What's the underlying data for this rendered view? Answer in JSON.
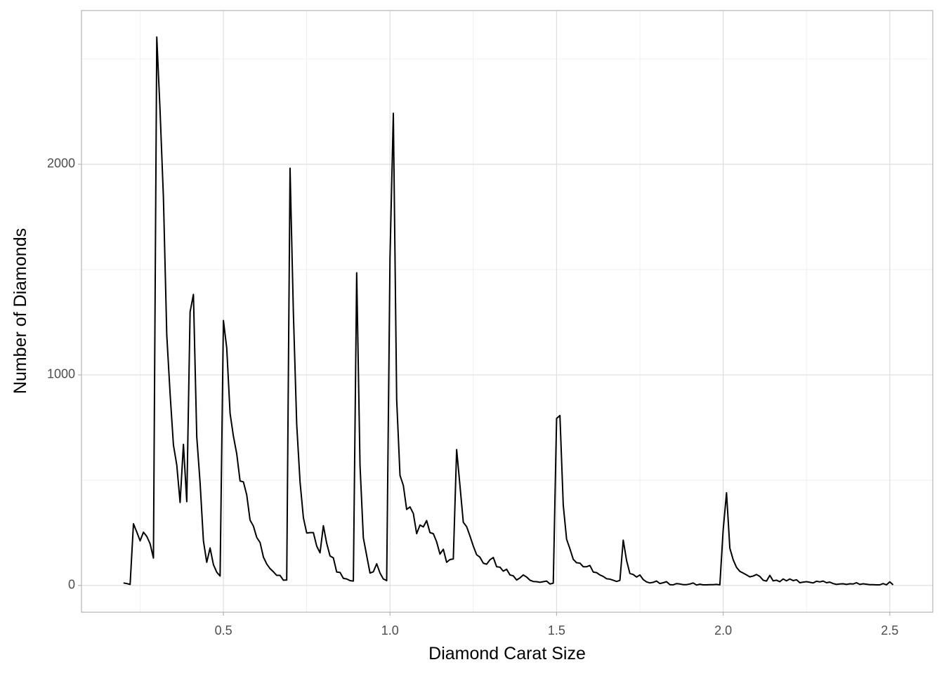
{
  "chart_data": {
    "type": "line",
    "x_label": "Diamond Carat Size",
    "y_label": "Number of Diamonds",
    "x": [
      0.2,
      0.21,
      0.22,
      0.23,
      0.24,
      0.25,
      0.26,
      0.27,
      0.28,
      0.29,
      0.3,
      0.31,
      0.32,
      0.33,
      0.34,
      0.35,
      0.36,
      0.37,
      0.38,
      0.39,
      0.4,
      0.41,
      0.42,
      0.43,
      0.44,
      0.45,
      0.46,
      0.47,
      0.48,
      0.49,
      0.5,
      0.51,
      0.52,
      0.53,
      0.54,
      0.55,
      0.56,
      0.57,
      0.58,
      0.59,
      0.6,
      0.61,
      0.62,
      0.63,
      0.64,
      0.65,
      0.66,
      0.67,
      0.68,
      0.69,
      0.7,
      0.71,
      0.72,
      0.73,
      0.74,
      0.75,
      0.76,
      0.77,
      0.78,
      0.79,
      0.8,
      0.81,
      0.82,
      0.83,
      0.84,
      0.85,
      0.86,
      0.87,
      0.88,
      0.89,
      0.9,
      0.91,
      0.92,
      0.93,
      0.94,
      0.95,
      0.96,
      0.97,
      0.98,
      0.99,
      1.0,
      1.01,
      1.02,
      1.03,
      1.04,
      1.05,
      1.06,
      1.07,
      1.08,
      1.09,
      1.1,
      1.11,
      1.12,
      1.13,
      1.14,
      1.15,
      1.16,
      1.17,
      1.18,
      1.19,
      1.2,
      1.21,
      1.22,
      1.23,
      1.24,
      1.25,
      1.26,
      1.27,
      1.28,
      1.29,
      1.3,
      1.31,
      1.32,
      1.33,
      1.34,
      1.35,
      1.36,
      1.37,
      1.38,
      1.39,
      1.4,
      1.41,
      1.42,
      1.43,
      1.44,
      1.45,
      1.46,
      1.47,
      1.48,
      1.49,
      1.5,
      1.51,
      1.52,
      1.53,
      1.54,
      1.55,
      1.56,
      1.57,
      1.58,
      1.59,
      1.6,
      1.61,
      1.62,
      1.63,
      1.64,
      1.65,
      1.66,
      1.67,
      1.68,
      1.69,
      1.7,
      1.71,
      1.72,
      1.73,
      1.74,
      1.75,
      1.76,
      1.77,
      1.78,
      1.79,
      1.8,
      1.81,
      1.82,
      1.83,
      1.84,
      1.85,
      1.86,
      1.87,
      1.88,
      1.89,
      1.9,
      1.91,
      1.92,
      1.93,
      1.94,
      1.95,
      1.96,
      1.97,
      1.98,
      1.99,
      2.0,
      2.01,
      2.02,
      2.03,
      2.04,
      2.05,
      2.06,
      2.07,
      2.08,
      2.09,
      2.1,
      2.11,
      2.12,
      2.13,
      2.14,
      2.15,
      2.16,
      2.17,
      2.18,
      2.19,
      2.2,
      2.21,
      2.22,
      2.23,
      2.24,
      2.25,
      2.26,
      2.27,
      2.28,
      2.29,
      2.3,
      2.31,
      2.32,
      2.33,
      2.34,
      2.35,
      2.36,
      2.37,
      2.38,
      2.39,
      2.4,
      2.41,
      2.42,
      2.43,
      2.44,
      2.45,
      2.46,
      2.47,
      2.48,
      2.49,
      2.5,
      2.51
    ],
    "series": [
      {
        "color": "#000000",
        "values": [
          12,
          9,
          5,
          293,
          254,
          212,
          253,
          233,
          198,
          130,
          2604,
          2249,
          1840,
          1189,
          910,
          667,
          572,
          394,
          670,
          398,
          1299,
          1382,
          706,
          488,
          212,
          110,
          178,
          99,
          63,
          45,
          1258,
          1127,
          817,
          709,
          625,
          496,
          492,
          430,
          310,
          282,
          228,
          204,
          135,
          102,
          80,
          65,
          48,
          48,
          25,
          26,
          1981,
          1294,
          764,
          492,
          322,
          249,
          251,
          251,
          187,
          155,
          284,
          200,
          140,
          131,
          64,
          62,
          34,
          31,
          23,
          21,
          1485,
          570,
          226,
          142,
          59,
          65,
          103,
          59,
          31,
          23,
          1558,
          2242,
          883,
          523,
          475,
          361,
          373,
          342,
          246,
          287,
          278,
          308,
          251,
          246,
          207,
          149,
          172,
          110,
          123,
          126,
          645,
          473,
          300,
          279,
          235,
          187,
          146,
          134,
          106,
          101,
          122,
          133,
          89,
          87,
          68,
          77,
          50,
          46,
          26,
          36,
          50,
          40,
          25,
          19,
          18,
          15,
          18,
          21,
          7,
          11,
          793,
          807,
          381,
          220,
          174,
          124,
          108,
          106,
          89,
          89,
          95,
          64,
          61,
          50,
          43,
          32,
          30,
          25,
          19,
          24,
          215,
          119,
          57,
          52,
          40,
          50,
          28,
          17,
          12,
          15,
          21,
          9,
          13,
          18,
          4,
          3,
          9,
          7,
          4,
          4,
          7,
          12,
          2,
          6,
          3,
          3,
          4,
          4,
          5,
          3,
          265,
          440,
          177,
          122,
          86,
          67,
          59,
          50,
          41,
          45,
          52,
          43,
          25,
          21,
          48,
          22,
          25,
          18,
          31,
          22,
          31,
          23,
          27,
          13,
          16,
          18,
          15,
          12,
          20,
          17,
          21,
          13,
          16,
          9,
          5,
          7,
          8,
          5,
          8,
          7,
          13,
          5,
          8,
          6,
          4,
          4,
          3,
          3,
          9,
          3,
          17,
          3
        ]
      }
    ],
    "xlim": [
      0.074,
      2.629
    ],
    "ylim": [
      -127,
      2730
    ],
    "xticks": [
      0.5,
      {
        "value": 1,
        "label": "1.0"
      },
      1.5,
      {
        "value": 2,
        "label": "2.0"
      },
      2.5
    ],
    "yticks": [
      0,
      1000,
      2000
    ],
    "x_minor_grid": [
      0.25,
      0.75,
      1.25,
      1.75,
      2.25
    ],
    "y_minor_grid": [
      500,
      1500,
      2500
    ],
    "grid": true
  }
}
